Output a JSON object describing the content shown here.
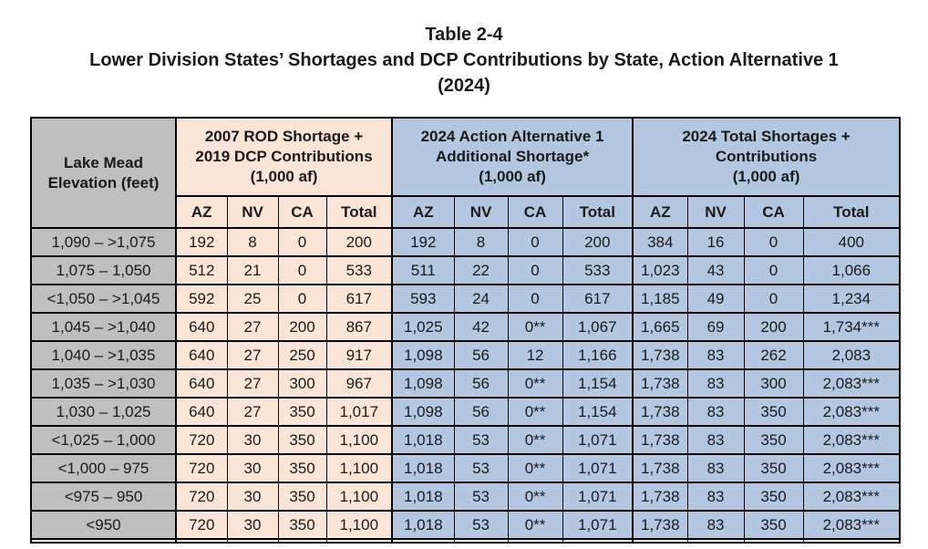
{
  "title": {
    "line1": "Table 2-4",
    "line2": "Lower Division States’ Shortages and DCP Contributions by State, Action Alternative 1",
    "line3": "(2024)"
  },
  "table": {
    "row_header_lines": [
      "Lake Mead",
      "Elevation (feet)"
    ],
    "groups": [
      {
        "title_lines": [
          "2007 ROD Shortage +",
          "2019 DCP Contributions",
          "(1,000 af)"
        ],
        "columns": [
          "AZ",
          "NV",
          "CA",
          "Total"
        ]
      },
      {
        "title_lines": [
          "2024 Action Alternative 1",
          "Additional Shortage*",
          "(1,000 af)"
        ],
        "columns": [
          "AZ",
          "NV",
          "CA",
          "Total"
        ]
      },
      {
        "title_lines": [
          "2024 Total Shortages +",
          "Contributions",
          "(1,000 af)"
        ],
        "columns": [
          "AZ",
          "NV",
          "CA",
          "Total"
        ]
      }
    ],
    "rows": [
      [
        "1,090 – >1,075",
        "192",
        "8",
        "0",
        "200",
        "192",
        "8",
        "0",
        "200",
        "384",
        "16",
        "0",
        "400"
      ],
      [
        "1,075 – 1,050",
        "512",
        "21",
        "0",
        "533",
        "511",
        "22",
        "0",
        "533",
        "1,023",
        "43",
        "0",
        "1,066"
      ],
      [
        "<1,050 – >1,045",
        "592",
        "25",
        "0",
        "617",
        "593",
        "24",
        "0",
        "617",
        "1,185",
        "49",
        "0",
        "1,234"
      ],
      [
        "1,045 – >1,040",
        "640",
        "27",
        "200",
        "867",
        "1,025",
        "42",
        "0**",
        "1,067",
        "1,665",
        "69",
        "200",
        "1,734***"
      ],
      [
        "1,040 – >1,035",
        "640",
        "27",
        "250",
        "917",
        "1,098",
        "56",
        "12",
        "1,166",
        "1,738",
        "83",
        "262",
        "2,083"
      ],
      [
        "1,035 – >1,030",
        "640",
        "27",
        "300",
        "967",
        "1,098",
        "56",
        "0**",
        "1,154",
        "1,738",
        "83",
        "300",
        "2,083***"
      ],
      [
        "1,030 – 1,025",
        "640",
        "27",
        "350",
        "1,017",
        "1,098",
        "56",
        "0**",
        "1,154",
        "1,738",
        "83",
        "350",
        "2,083***"
      ],
      [
        "<1,025 – 1,000",
        "720",
        "30",
        "350",
        "1,100",
        "1,018",
        "53",
        "0**",
        "1,071",
        "1,738",
        "83",
        "350",
        "2,083***"
      ],
      [
        "<1,000 – 975",
        "720",
        "30",
        "350",
        "1,100",
        "1,018",
        "53",
        "0**",
        "1,071",
        "1,738",
        "83",
        "350",
        "2,083***"
      ],
      [
        "<975 – 950",
        "720",
        "30",
        "350",
        "1,100",
        "1,018",
        "53",
        "0**",
        "1,071",
        "1,738",
        "83",
        "350",
        "2,083***"
      ],
      [
        "<950",
        "720",
        "30",
        "350",
        "1,100",
        "1,018",
        "53",
        "0**",
        "1,071",
        "1,738",
        "83",
        "350",
        "2,083***"
      ]
    ]
  },
  "colors": {
    "elevation_column_bg": "#BFBFBF",
    "group1_bg": "#FBE5D6",
    "group2_bg": "#B4C7E1",
    "group3_bg": "#B4C7E1",
    "border": "#000000",
    "text": "#1A1A1A",
    "page_bg": "#FFFFFF"
  }
}
